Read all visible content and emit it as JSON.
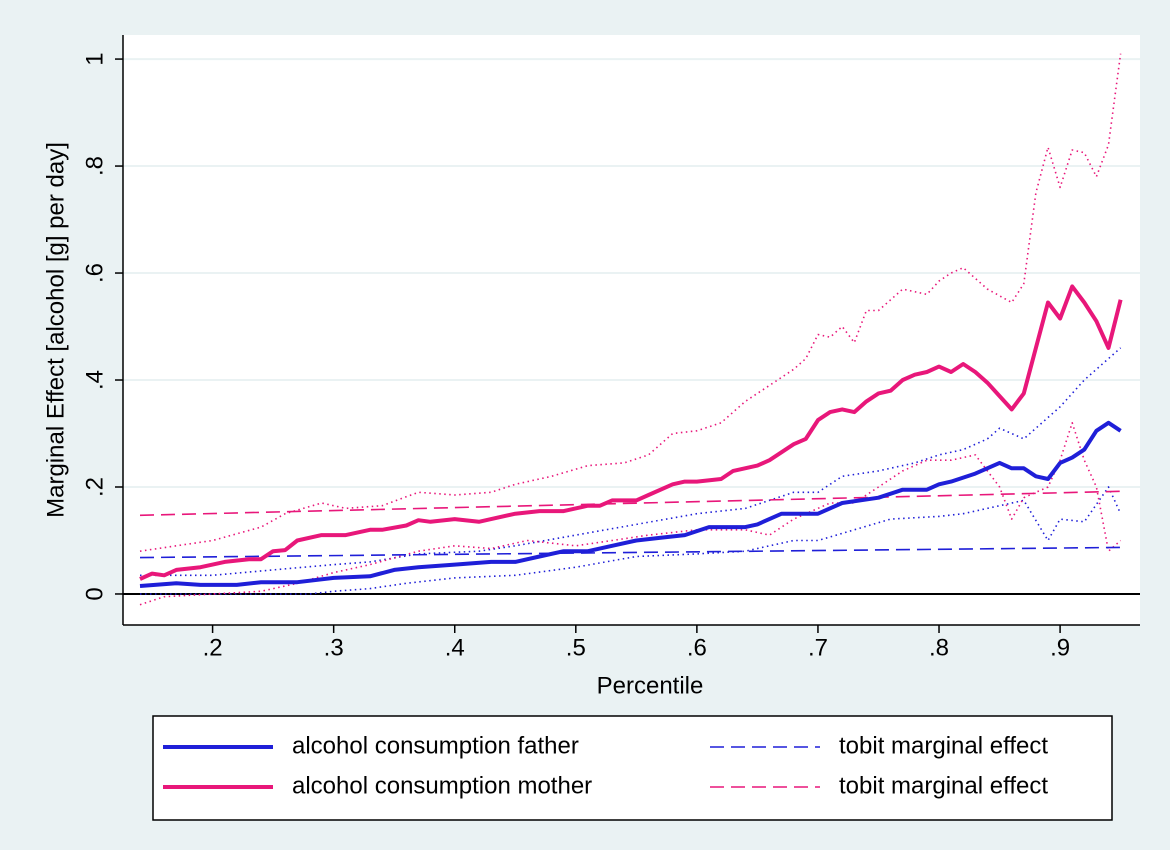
{
  "chart_data": {
    "type": "line",
    "x_label": "Percentile",
    "y_label": "Marginal Effect [alcohol [g] per day]",
    "xlim": [
      0.126,
      0.966
    ],
    "ylim": [
      -0.058,
      1.045
    ],
    "xticks": [
      {
        "value": 0.2,
        "label": ".2"
      },
      {
        "value": 0.3,
        "label": ".3"
      },
      {
        "value": 0.4,
        "label": ".4"
      },
      {
        "value": 0.5,
        "label": ".5"
      },
      {
        "value": 0.6,
        "label": ".6"
      },
      {
        "value": 0.7,
        "label": ".7"
      },
      {
        "value": 0.8,
        "label": ".8"
      },
      {
        "value": 0.9,
        "label": ".9"
      }
    ],
    "yticks": [
      0,
      {
        "value": 0.2,
        "label": ".2"
      },
      {
        "value": 0.4,
        "label": ".4"
      },
      {
        "value": 0.6,
        "label": ".6"
      },
      {
        "value": 0.8,
        "label": ".8"
      },
      1
    ],
    "grid": true,
    "hline": 0,
    "legend": "bottom",
    "legend_columns": 2,
    "series": [
      {
        "name": "alcohol consumption father",
        "color": "#1f1fd8",
        "style": "solid",
        "x": [
          0.14,
          0.17,
          0.19,
          0.22,
          0.24,
          0.27,
          0.3,
          0.33,
          0.35,
          0.37,
          0.4,
          0.43,
          0.45,
          0.47,
          0.49,
          0.51,
          0.53,
          0.55,
          0.57,
          0.59,
          0.61,
          0.64,
          0.65,
          0.67,
          0.7,
          0.72,
          0.75,
          0.77,
          0.79,
          0.8,
          0.81,
          0.83,
          0.85,
          0.86,
          0.87,
          0.88,
          0.89,
          0.9,
          0.91,
          0.92,
          0.93,
          0.94,
          0.95
        ],
        "values": [
          0.015,
          0.02,
          0.017,
          0.017,
          0.022,
          0.022,
          0.03,
          0.033,
          0.045,
          0.05,
          0.055,
          0.06,
          0.06,
          0.07,
          0.08,
          0.08,
          0.09,
          0.1,
          0.105,
          0.11,
          0.125,
          0.125,
          0.13,
          0.15,
          0.15,
          0.17,
          0.18,
          0.195,
          0.195,
          0.205,
          0.21,
          0.225,
          0.245,
          0.235,
          0.235,
          0.22,
          0.215,
          0.245,
          0.255,
          0.27,
          0.305,
          0.32,
          0.305
        ]
      },
      {
        "name": "tobit marginal effect",
        "color": "#1f1fd8",
        "style": "dashed",
        "x": [
          0.14,
          0.95
        ],
        "values": [
          0.068,
          0.087
        ]
      },
      {
        "name": "alcohol consumption mother",
        "color": "#e8177a",
        "style": "solid",
        "x": [
          0.14,
          0.15,
          0.16,
          0.17,
          0.19,
          0.21,
          0.23,
          0.24,
          0.25,
          0.26,
          0.27,
          0.29,
          0.31,
          0.33,
          0.34,
          0.36,
          0.37,
          0.38,
          0.4,
          0.42,
          0.43,
          0.45,
          0.47,
          0.49,
          0.51,
          0.52,
          0.53,
          0.55,
          0.56,
          0.58,
          0.59,
          0.6,
          0.62,
          0.63,
          0.65,
          0.66,
          0.68,
          0.69,
          0.7,
          0.71,
          0.72,
          0.73,
          0.74,
          0.75,
          0.76,
          0.77,
          0.78,
          0.79,
          0.8,
          0.81,
          0.82,
          0.83,
          0.84,
          0.85,
          0.86,
          0.87,
          0.88,
          0.89,
          0.9,
          0.91,
          0.92,
          0.93,
          0.94,
          0.95
        ],
        "values": [
          0.028,
          0.038,
          0.035,
          0.045,
          0.05,
          0.06,
          0.065,
          0.065,
          0.08,
          0.082,
          0.1,
          0.11,
          0.11,
          0.12,
          0.12,
          0.128,
          0.138,
          0.135,
          0.14,
          0.135,
          0.14,
          0.15,
          0.155,
          0.155,
          0.165,
          0.165,
          0.175,
          0.175,
          0.185,
          0.205,
          0.21,
          0.21,
          0.215,
          0.23,
          0.24,
          0.25,
          0.28,
          0.29,
          0.325,
          0.34,
          0.345,
          0.34,
          0.36,
          0.375,
          0.38,
          0.4,
          0.41,
          0.415,
          0.425,
          0.415,
          0.43,
          0.415,
          0.395,
          0.37,
          0.345,
          0.375,
          0.46,
          0.545,
          0.515,
          0.575,
          0.545,
          0.51,
          0.46,
          0.55
        ]
      },
      {
        "name": "tobit marginal effect",
        "color": "#e8177a",
        "style": "dashed",
        "x": [
          0.14,
          0.95
        ],
        "values": [
          0.147,
          0.192
        ]
      },
      {
        "color": "#1f1fd8",
        "style": "dotted",
        "x": [
          0.14,
          0.2,
          0.25,
          0.3,
          0.33,
          0.37,
          0.42,
          0.45,
          0.5,
          0.55,
          0.6,
          0.64,
          0.68,
          0.7,
          0.72,
          0.75,
          0.78,
          0.8,
          0.82,
          0.84,
          0.85,
          0.87,
          0.88,
          0.9,
          0.92,
          0.94,
          0.95
        ],
        "values": [
          0.035,
          0.035,
          0.045,
          0.055,
          0.06,
          0.075,
          0.08,
          0.09,
          0.11,
          0.13,
          0.15,
          0.16,
          0.19,
          0.19,
          0.22,
          0.23,
          0.245,
          0.26,
          0.27,
          0.29,
          0.31,
          0.29,
          0.31,
          0.35,
          0.4,
          0.44,
          0.46
        ]
      },
      {
        "color": "#1f1fd8",
        "style": "dotted",
        "x": [
          0.14,
          0.2,
          0.28,
          0.3,
          0.33,
          0.36,
          0.4,
          0.45,
          0.5,
          0.55,
          0.6,
          0.64,
          0.66,
          0.68,
          0.7,
          0.73,
          0.76,
          0.8,
          0.82,
          0.85,
          0.87,
          0.89,
          0.9,
          0.92,
          0.94,
          0.95
        ],
        "values": [
          0,
          0,
          0,
          0.005,
          0.01,
          0.02,
          0.03,
          0.035,
          0.05,
          0.07,
          0.075,
          0.08,
          0.09,
          0.1,
          0.1,
          0.12,
          0.14,
          0.145,
          0.15,
          0.165,
          0.175,
          0.1,
          0.14,
          0.135,
          0.2,
          0.15
        ]
      },
      {
        "color": "#e8177a",
        "style": "dotted",
        "x": [
          0.14,
          0.17,
          0.2,
          0.24,
          0.26,
          0.29,
          0.31,
          0.34,
          0.37,
          0.4,
          0.43,
          0.45,
          0.48,
          0.51,
          0.54,
          0.56,
          0.58,
          0.6,
          0.62,
          0.64,
          0.66,
          0.68,
          0.69,
          0.7,
          0.71,
          0.72,
          0.73,
          0.74,
          0.75,
          0.77,
          0.79,
          0.8,
          0.81,
          0.82,
          0.84,
          0.86,
          0.87,
          0.88,
          0.89,
          0.9,
          0.91,
          0.92,
          0.93,
          0.94,
          0.95
        ],
        "values": [
          0.08,
          0.09,
          0.1,
          0.125,
          0.15,
          0.17,
          0.16,
          0.165,
          0.19,
          0.185,
          0.19,
          0.205,
          0.22,
          0.24,
          0.245,
          0.26,
          0.3,
          0.305,
          0.32,
          0.36,
          0.39,
          0.42,
          0.44,
          0.485,
          0.48,
          0.5,
          0.47,
          0.53,
          0.53,
          0.57,
          0.56,
          0.585,
          0.6,
          0.61,
          0.57,
          0.545,
          0.58,
          0.75,
          0.835,
          0.76,
          0.83,
          0.825,
          0.78,
          0.84,
          1.01
        ]
      },
      {
        "color": "#e8177a",
        "style": "dotted",
        "x": [
          0.14,
          0.16,
          0.2,
          0.24,
          0.27,
          0.3,
          0.33,
          0.37,
          0.4,
          0.43,
          0.46,
          0.5,
          0.53,
          0.56,
          0.6,
          0.64,
          0.66,
          0.68,
          0.71,
          0.73,
          0.75,
          0.77,
          0.79,
          0.81,
          0.83,
          0.85,
          0.86,
          0.87,
          0.89,
          0.9,
          0.91,
          0.92,
          0.93,
          0.94,
          0.95
        ],
        "values": [
          -0.02,
          -0.005,
          0,
          0.005,
          0.02,
          0.04,
          0.055,
          0.08,
          0.09,
          0.085,
          0.1,
          0.09,
          0.1,
          0.11,
          0.12,
          0.12,
          0.11,
          0.14,
          0.17,
          0.17,
          0.2,
          0.23,
          0.25,
          0.25,
          0.26,
          0.2,
          0.14,
          0.18,
          0.2,
          0.25,
          0.32,
          0.25,
          0.2,
          0.08,
          0.1
        ]
      }
    ]
  }
}
